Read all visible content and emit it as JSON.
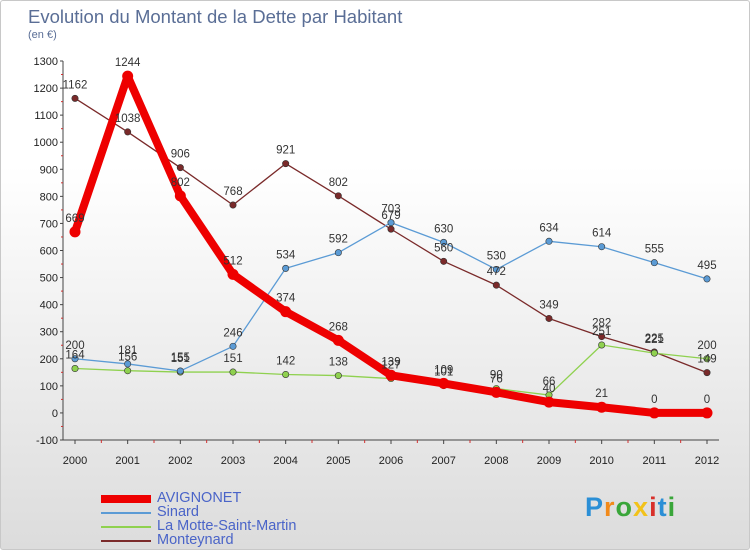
{
  "header": {
    "title": "Evolution du Montant de la Dette par Habitant",
    "unit": "(en €)"
  },
  "logo": {
    "text": "Proxiti",
    "colors": [
      "#2b8fd6",
      "#f28a1a",
      "#3aa63a",
      "#f2c21a",
      "#d8302a",
      "#2b8fd6",
      "#3aa63a"
    ]
  },
  "chart_data": {
    "type": "line",
    "title": "Evolution du Montant de la Dette par Habitant",
    "ylabel": "(en €)",
    "x": [
      2000,
      2001,
      2002,
      2003,
      2004,
      2005,
      2006,
      2007,
      2008,
      2009,
      2010,
      2011,
      2012
    ],
    "ylim": [
      -100,
      1300
    ],
    "yticks": [
      -100,
      0,
      100,
      200,
      300,
      400,
      500,
      600,
      700,
      800,
      900,
      1000,
      1100,
      1200,
      1300
    ],
    "grid": false,
    "legend_placement": "bottom-left",
    "series": [
      {
        "name": "AVIGNONET",
        "color": "#ee0000",
        "values": [
          669,
          1244,
          802,
          512,
          374,
          268,
          139,
          109,
          76,
          40,
          21,
          0,
          0
        ]
      },
      {
        "name": "Sinard",
        "color": "#5b9bd5",
        "values": [
          200,
          181,
          155,
          246,
          534,
          592,
          703,
          630,
          530,
          634,
          614,
          555,
          495
        ]
      },
      {
        "name": "La Motte-Saint-Martin",
        "color": "#8fd14f",
        "values": [
          164,
          156,
          151,
          151,
          142,
          138,
          127,
          101,
          90,
          66,
          251,
          221,
          200
        ]
      },
      {
        "name": "Monteynard",
        "color": "#7a2a2a",
        "values": [
          1162,
          1038,
          906,
          768,
          921,
          802,
          679,
          560,
          472,
          349,
          282,
          225,
          149
        ]
      }
    ]
  }
}
